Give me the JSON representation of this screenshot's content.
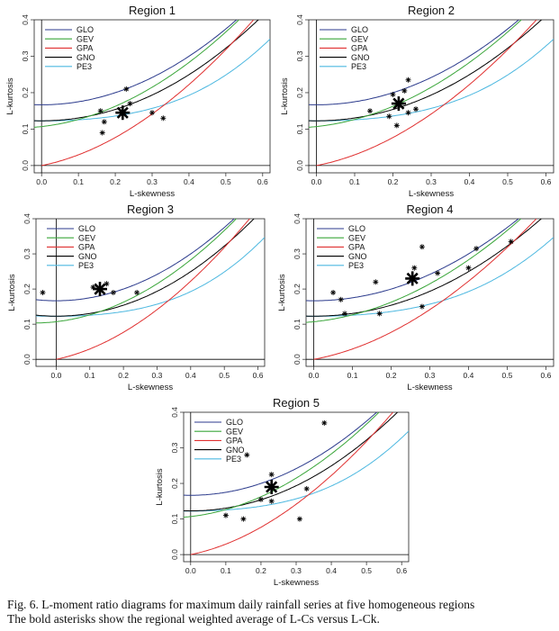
{
  "curve_colors": {
    "GLO": "#2b3a8c",
    "GEV": "#3aa63a",
    "GPA": "#e03030",
    "GNO": "#000000",
    "PE3": "#4db8e0"
  },
  "chart_data": [
    {
      "type": "scatter",
      "title": "Region 1",
      "xlabel": "L-skewness",
      "ylabel": "L-kurtosis",
      "xlim": [
        -0.02,
        0.62
      ],
      "ylim": [
        -0.02,
        0.4
      ],
      "xticks": [
        "0.0",
        "0.1",
        "0.2",
        "0.3",
        "0.4",
        "0.5",
        "0.6"
      ],
      "yticks": [
        "0.0",
        "0.1",
        "0.2",
        "0.3",
        "0.4"
      ],
      "legend": [
        "GLO",
        "GEV",
        "GPA",
        "GNO",
        "PE3"
      ],
      "points": [
        [
          0.16,
          0.15
        ],
        [
          0.17,
          0.12
        ],
        [
          0.165,
          0.09
        ],
        [
          0.23,
          0.21
        ],
        [
          0.24,
          0.17
        ],
        [
          0.3,
          0.145
        ],
        [
          0.33,
          0.13
        ]
      ],
      "average": [
        0.22,
        0.145
      ]
    },
    {
      "type": "scatter",
      "title": "Region 2",
      "xlabel": "L-skewness",
      "ylabel": "L-kurtosis",
      "xlim": [
        -0.02,
        0.62
      ],
      "ylim": [
        -0.02,
        0.4
      ],
      "xticks": [
        "0.0",
        "0.1",
        "0.2",
        "0.3",
        "0.4",
        "0.5",
        "0.6"
      ],
      "yticks": [
        "0.0",
        "0.1",
        "0.2",
        "0.3",
        "0.4"
      ],
      "legend": [
        "GLO",
        "GEV",
        "GPA",
        "GNO",
        "PE3"
      ],
      "points": [
        [
          0.14,
          0.15
        ],
        [
          0.19,
          0.135
        ],
        [
          0.2,
          0.195
        ],
        [
          0.21,
          0.11
        ],
        [
          0.23,
          0.205
        ],
        [
          0.24,
          0.235
        ],
        [
          0.24,
          0.145
        ],
        [
          0.26,
          0.155
        ]
      ],
      "average": [
        0.215,
        0.17
      ]
    },
    {
      "type": "scatter",
      "title": "Region 3",
      "xlabel": "L-skewness",
      "ylabel": "L-kurtosis",
      "xlim": [
        -0.06,
        0.62
      ],
      "ylim": [
        -0.02,
        0.4
      ],
      "xticks": [
        "0.0",
        "0.1",
        "0.2",
        "0.3",
        "0.4",
        "0.5",
        "0.6"
      ],
      "yticks": [
        "0.0",
        "0.1",
        "0.2",
        "0.3",
        "0.4"
      ],
      "legend": [
        "GLO",
        "GEV",
        "GPA",
        "GNO",
        "PE3"
      ],
      "points": [
        [
          -0.04,
          0.19
        ],
        [
          0.11,
          0.205
        ],
        [
          0.15,
          0.215
        ],
        [
          0.17,
          0.19
        ],
        [
          0.24,
          0.19
        ]
      ],
      "average": [
        0.13,
        0.2
      ]
    },
    {
      "type": "scatter",
      "title": "Region 4",
      "xlabel": "L-skewness",
      "ylabel": "L-kurtosis",
      "xlim": [
        -0.02,
        0.62
      ],
      "ylim": [
        -0.02,
        0.4
      ],
      "xticks": [
        "0.0",
        "0.1",
        "0.2",
        "0.3",
        "0.4",
        "0.5",
        "0.6"
      ],
      "yticks": [
        "0.0",
        "0.1",
        "0.2",
        "0.3",
        "0.4"
      ],
      "legend": [
        "GLO",
        "GEV",
        "GPA",
        "GNO",
        "PE3"
      ],
      "points": [
        [
          0.05,
          0.19
        ],
        [
          0.07,
          0.17
        ],
        [
          0.08,
          0.13
        ],
        [
          0.16,
          0.22
        ],
        [
          0.17,
          0.13
        ],
        [
          0.26,
          0.26
        ],
        [
          0.28,
          0.32
        ],
        [
          0.28,
          0.15
        ],
        [
          0.32,
          0.245
        ],
        [
          0.4,
          0.26
        ],
        [
          0.42,
          0.315
        ],
        [
          0.51,
          0.335
        ]
      ],
      "average": [
        0.255,
        0.23
      ]
    },
    {
      "type": "scatter",
      "title": "Region 5",
      "xlabel": "L-skewness",
      "ylabel": "L-kurtosis",
      "xlim": [
        -0.02,
        0.62
      ],
      "ylim": [
        -0.02,
        0.4
      ],
      "xticks": [
        "0.0",
        "0.1",
        "0.2",
        "0.3",
        "0.4",
        "0.5",
        "0.6"
      ],
      "yticks": [
        "0.0",
        "0.1",
        "0.2",
        "0.3",
        "0.4"
      ],
      "legend": [
        "GLO",
        "GEV",
        "GPA",
        "GNO",
        "PE3"
      ],
      "points": [
        [
          0.1,
          0.11
        ],
        [
          0.15,
          0.1
        ],
        [
          0.16,
          0.28
        ],
        [
          0.2,
          0.155
        ],
        [
          0.23,
          0.225
        ],
        [
          0.23,
          0.15
        ],
        [
          0.31,
          0.1
        ],
        [
          0.33,
          0.185
        ],
        [
          0.38,
          0.37
        ]
      ],
      "average": [
        0.23,
        0.19
      ]
    }
  ],
  "caption": {
    "line1": "Fig. 6. L-moment ratio diagrams for maximum daily rainfall series at five homogeneous regions",
    "line2": "The bold asterisks show the regional weighted average of L-Cs versus L-Ck."
  }
}
